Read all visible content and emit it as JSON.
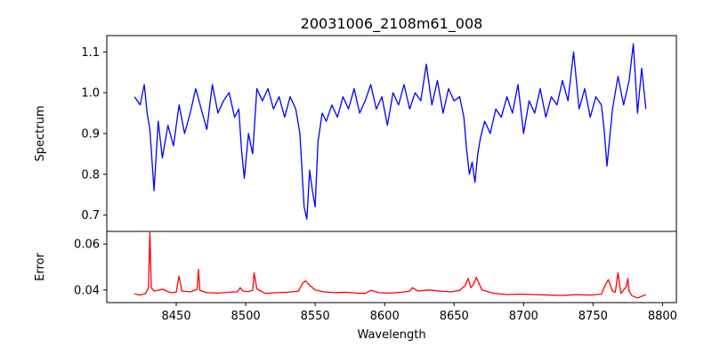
{
  "chart_data": {
    "type": "line",
    "title": "20031006_2108m61_008",
    "xlabel": "Wavelength",
    "xlim": [
      8400,
      8810
    ],
    "xticks": [
      8450,
      8500,
      8550,
      8600,
      8650,
      8700,
      8750,
      8800
    ],
    "grid": false,
    "panels": [
      {
        "id": "spectrum",
        "ylabel": "Spectrum",
        "ylim": [
          0.66,
          1.14
        ],
        "yticks": [
          0.7,
          0.8,
          0.9,
          1.0,
          1.1
        ],
        "ytick_labels": [
          "0.7",
          "0.8",
          "0.9",
          "1.0",
          "1.1"
        ],
        "series": [
          {
            "color": "#0000ff",
            "x": [
              8420,
              8424,
              8427,
              8429,
              8431,
              8434,
              8437,
              8440,
              8444,
              8448,
              8452,
              8456,
              8460,
              8464,
              8468,
              8472,
              8476,
              8480,
              8484,
              8488,
              8492,
              8495,
              8497,
              8499,
              8502,
              8505,
              8508,
              8512,
              8516,
              8520,
              8524,
              8528,
              8532,
              8536,
              8539,
              8541,
              8542,
              8544,
              8546,
              8548,
              8550,
              8552,
              8555,
              8558,
              8562,
              8566,
              8570,
              8574,
              8578,
              8582,
              8586,
              8590,
              8594,
              8598,
              8602,
              8606,
              8610,
              8614,
              8618,
              8622,
              8626,
              8630,
              8634,
              8638,
              8642,
              8646,
              8650,
              8654,
              8657,
              8659,
              8661,
              8663,
              8665,
              8667,
              8669,
              8672,
              8676,
              8680,
              8684,
              8688,
              8692,
              8696,
              8700,
              8704,
              8708,
              8712,
              8716,
              8720,
              8724,
              8728,
              8732,
              8736,
              8740,
              8744,
              8748,
              8752,
              8756,
              8758,
              8760,
              8764,
              8768,
              8772,
              8776,
              8779,
              8782,
              8785,
              8788
            ],
            "y": [
              0.99,
              0.97,
              1.02,
              0.95,
              0.91,
              0.76,
              0.93,
              0.84,
              0.92,
              0.87,
              0.97,
              0.9,
              0.95,
              1.01,
              0.96,
              0.91,
              1.02,
              0.95,
              0.98,
              1.0,
              0.94,
              0.96,
              0.86,
              0.79,
              0.9,
              0.85,
              1.01,
              0.98,
              1.01,
              0.96,
              0.99,
              0.94,
              0.99,
              0.96,
              0.9,
              0.78,
              0.72,
              0.69,
              0.81,
              0.76,
              0.72,
              0.88,
              0.95,
              0.93,
              0.97,
              0.94,
              0.99,
              0.96,
              1.01,
              0.95,
              0.98,
              1.02,
              0.96,
              0.99,
              0.92,
              1.0,
              0.97,
              1.02,
              0.96,
              1.0,
              0.98,
              1.07,
              0.97,
              1.03,
              0.95,
              1.01,
              0.98,
              0.99,
              0.94,
              0.86,
              0.8,
              0.83,
              0.78,
              0.85,
              0.89,
              0.93,
              0.9,
              0.96,
              0.94,
              0.99,
              0.95,
              1.02,
              0.9,
              0.98,
              0.95,
              1.01,
              0.94,
              0.99,
              0.97,
              1.03,
              0.98,
              1.1,
              0.96,
              1.01,
              0.94,
              0.99,
              0.97,
              0.91,
              0.82,
              0.96,
              1.04,
              0.97,
              1.03,
              1.12,
              0.95,
              1.06,
              0.96
            ]
          }
        ]
      },
      {
        "id": "error",
        "ylabel": "Error",
        "ylim": [
          0.0345,
          0.0655
        ],
        "yticks": [
          0.04,
          0.06
        ],
        "ytick_labels": [
          "0.04",
          "0.06"
        ],
        "series": [
          {
            "color": "#ff0000",
            "x": [
              8420,
              8424,
              8428,
              8430,
              8431,
              8432,
              8434,
              8440,
              8446,
              8450,
              8452,
              8454,
              8460,
              8465,
              8466,
              8467,
              8472,
              8480,
              8488,
              8494,
              8496,
              8498,
              8502,
              8505,
              8506,
              8508,
              8514,
              8522,
              8530,
              8538,
              8541,
              8543,
              8546,
              8550,
              8556,
              8564,
              8572,
              8580,
              8586,
              8590,
              8596,
              8604,
              8612,
              8618,
              8620,
              8624,
              8632,
              8640,
              8648,
              8654,
              8658,
              8660,
              8662,
              8664,
              8666,
              8670,
              8678,
              8688,
              8698,
              8708,
              8718,
              8728,
              8738,
              8748,
              8756,
              8759,
              8761,
              8764,
              8766,
              8768,
              8770,
              8774,
              8775,
              8776,
              8778,
              8782,
              8788
            ],
            "y": [
              0.0383,
              0.0378,
              0.0385,
              0.041,
              0.065,
              0.041,
              0.0395,
              0.0403,
              0.0388,
              0.039,
              0.046,
              0.0395,
              0.0392,
              0.0402,
              0.049,
              0.0398,
              0.0388,
              0.0386,
              0.039,
              0.0392,
              0.041,
              0.0395,
              0.0393,
              0.0398,
              0.0475,
              0.0405,
              0.0385,
              0.0388,
              0.039,
              0.0395,
              0.043,
              0.044,
              0.042,
              0.04,
              0.0392,
              0.0388,
              0.039,
              0.0386,
              0.0385,
              0.0398,
              0.0388,
              0.0386,
              0.039,
              0.0395,
              0.041,
              0.0395,
              0.04,
              0.0395,
              0.0392,
              0.0398,
              0.042,
              0.045,
              0.041,
              0.0425,
              0.0455,
              0.04,
              0.0386,
              0.038,
              0.0382,
              0.038,
              0.0378,
              0.0376,
              0.038,
              0.0378,
              0.0382,
              0.0425,
              0.0445,
              0.0395,
              0.039,
              0.0475,
              0.0385,
              0.0415,
              0.045,
              0.0395,
              0.0375,
              0.0365,
              0.038
            ]
          }
        ]
      }
    ]
  }
}
